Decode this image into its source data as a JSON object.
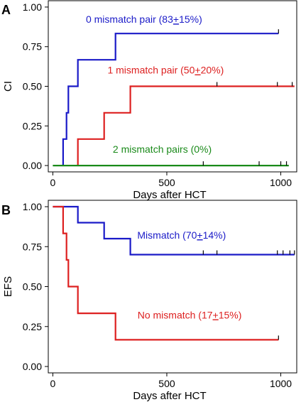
{
  "chart_data": [
    {
      "type": "line",
      "step": true,
      "panel_label": "A",
      "xlabel": "Days after HCT",
      "ylabel": "CI",
      "xlim": [
        -20,
        1070
      ],
      "ylim": [
        -0.04,
        1.04
      ],
      "xticks": [
        0,
        500,
        1000
      ],
      "xtick_labels": [
        "0",
        "500",
        "1000"
      ],
      "yticks": [
        0,
        0.25,
        0.5,
        0.75,
        1
      ],
      "ytick_labels": [
        "0.00",
        "0.25",
        "0.50",
        "0.75",
        "1.00"
      ],
      "series": [
        {
          "name": "0 mismatch pair (83±15%)",
          "label_main": "0 mismatch pair (83",
          "label_pm": "+",
          "label_tail": "15%)",
          "label_anchor": [
            400,
            0.9
          ],
          "color": "#1a1ac8",
          "points": [
            [
              45,
              0
            ],
            [
              45,
              0.167
            ],
            [
              60,
              0.167
            ],
            [
              60,
              0.333
            ],
            [
              68,
              0.333
            ],
            [
              68,
              0.5
            ],
            [
              110,
              0.5
            ],
            [
              110,
              0.667
            ],
            [
              275,
              0.667
            ],
            [
              275,
              0.833
            ],
            [
              990,
              0.833
            ]
          ],
          "censor_x": [
            990
          ]
        },
        {
          "name": "1 mismatch pair (50±20%)",
          "label_main": "1 mismatch pair (50",
          "label_pm": "+",
          "label_tail": "20%)",
          "label_anchor": [
            495,
            0.58
          ],
          "color": "#dd2020",
          "points": [
            [
              110,
              0
            ],
            [
              110,
              0.167
            ],
            [
              225,
              0.167
            ],
            [
              225,
              0.333
            ],
            [
              340,
              0.333
            ],
            [
              340,
              0.5
            ],
            [
              1060,
              0.5
            ]
          ],
          "censor_x": [
            720,
            985,
            1050
          ]
        },
        {
          "name": "2 mismatch pairs (0%)",
          "label_main": "2 mismatch pairs (0%)",
          "label_pm": "",
          "label_tail": "",
          "label_anchor": [
            480,
            0.08
          ],
          "color": "#1a8a1a",
          "points": [
            [
              0,
              0
            ],
            [
              1035,
              0
            ]
          ],
          "censor_x": [
            660,
            905,
            1000,
            1025
          ]
        }
      ]
    },
    {
      "type": "line",
      "step": true,
      "panel_label": "B",
      "xlabel": "Days after HCT",
      "ylabel": "EFS",
      "xlim": [
        -20,
        1070
      ],
      "ylim": [
        -0.04,
        1.04
      ],
      "xticks": [
        0,
        500,
        1000
      ],
      "xtick_labels": [
        "0",
        "500",
        "1000"
      ],
      "yticks": [
        0,
        0.25,
        0.5,
        0.75,
        1
      ],
      "ytick_labels": [
        "0.00",
        "0.25",
        "0.50",
        "0.75",
        "1.00"
      ],
      "series": [
        {
          "name": "Mismatch (70±14%)",
          "label_main": "Mismatch (70",
          "label_pm": "+",
          "label_tail": "14%)",
          "label_anchor": [
            565,
            0.8
          ],
          "color": "#1a1ac8",
          "points": [
            [
              0,
              1
            ],
            [
              110,
              1
            ],
            [
              110,
              0.9
            ],
            [
              225,
              0.9
            ],
            [
              225,
              0.8
            ],
            [
              340,
              0.8
            ],
            [
              340,
              0.7
            ],
            [
              1060,
              0.7
            ]
          ],
          "censor_x": [
            660,
            720,
            985,
            1010,
            1040,
            1060
          ]
        },
        {
          "name": "No mismatch (17±15%)",
          "label_main": "No mismatch (17",
          "label_pm": "+",
          "label_tail": "15%)",
          "label_anchor": [
            600,
            0.3
          ],
          "color": "#dd2020",
          "points": [
            [
              0,
              1
            ],
            [
              45,
              1
            ],
            [
              45,
              0.833
            ],
            [
              60,
              0.833
            ],
            [
              60,
              0.667
            ],
            [
              68,
              0.667
            ],
            [
              68,
              0.5
            ],
            [
              110,
              0.5
            ],
            [
              110,
              0.333
            ],
            [
              275,
              0.333
            ],
            [
              275,
              0.167
            ],
            [
              990,
              0.167
            ]
          ],
          "censor_x": [
            990
          ]
        }
      ]
    }
  ]
}
